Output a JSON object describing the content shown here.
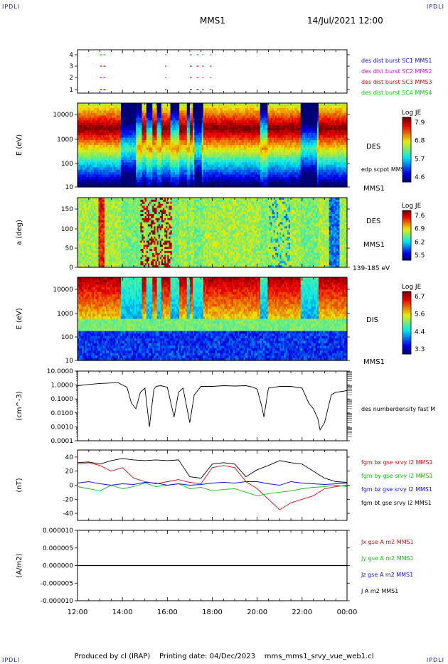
{
  "header": {
    "corner_labels": [
      "IPDLI",
      "IPDLI",
      "IPDLI",
      "IPDLI"
    ],
    "spacecraft": "MMS1",
    "datetime": "14/Jul/2021 12:00"
  },
  "footer": {
    "produced_by": "Produced by cl (IRAP)",
    "printing_date": "Printing date: 04/Dec/2023",
    "file_name": "mms_mms1_srvy_vue_web1.cl"
  },
  "colors": {
    "blue": "#1010d0",
    "magenta": "#d010d0",
    "red": "#d01010",
    "green": "#10c010",
    "black": "#000000"
  },
  "chart_data": [
    {
      "type": "line",
      "panel": "burst-availability",
      "yticks": [
        "4",
        "3",
        "2",
        "1"
      ],
      "legend": [
        "des dist burst SC1 MMS1",
        "des dist burst SC2 MMS2",
        "des dist burst SC3 MMS3",
        "des dist burst SC4 MMS4"
      ],
      "series": [
        {
          "name": "des dist burst SC1 MMS1",
          "level": 1,
          "intervals": [
            [
              13.0,
              13.3
            ],
            [
              15.9,
              15.95
            ],
            [
              17.0,
              17.15
            ],
            [
              17.3,
              17.4
            ],
            [
              17.55,
              17.6
            ],
            [
              17.9,
              17.95
            ]
          ]
        },
        {
          "name": "des dist burst SC2 MMS2",
          "level": 2,
          "intervals": [
            [
              13.0,
              13.3
            ],
            [
              15.9,
              15.95
            ],
            [
              17.0,
              17.15
            ],
            [
              17.3,
              17.4
            ],
            [
              17.55,
              17.6
            ],
            [
              17.9,
              17.95
            ]
          ]
        },
        {
          "name": "des dist burst SC3 MMS3",
          "level": 3,
          "intervals": [
            [
              13.0,
              13.3
            ],
            [
              15.9,
              15.95
            ],
            [
              17.0,
              17.15
            ],
            [
              17.3,
              17.4
            ],
            [
              17.55,
              17.6
            ],
            [
              17.9,
              17.95
            ]
          ]
        },
        {
          "name": "des dist burst SC4 MMS4",
          "level": 4,
          "intervals": [
            [
              13.0,
              13.3
            ],
            [
              15.9,
              15.95
            ],
            [
              17.0,
              17.15
            ],
            [
              17.3,
              17.4
            ],
            [
              17.55,
              17.6
            ],
            [
              17.9,
              17.95
            ]
          ]
        }
      ]
    },
    {
      "type": "heatmap",
      "panel": "des-energy",
      "ylabel": "E (eV)",
      "yticks": [
        "10000",
        "1000",
        "100",
        "10"
      ],
      "ylim": [
        10,
        30000
      ],
      "label": "DES",
      "side_labels": [
        "edp scpot MMS1",
        "MMS1"
      ],
      "colorbar": {
        "title": "Log JE",
        "ticks": [
          "7.9",
          "6.8",
          "5.7",
          "4.6"
        ]
      }
    },
    {
      "type": "heatmap",
      "panel": "des-pitch",
      "ylabel": "a (deg)",
      "yticks": [
        "150",
        "100",
        "50",
        "0"
      ],
      "ylim": [
        0,
        180
      ],
      "label": "DES",
      "side_labels": [
        "MMS1",
        "139-185 eV"
      ],
      "colorbar": {
        "title": "Log JE",
        "ticks": [
          "7.6",
          "6.9",
          "6.2",
          "5.5"
        ]
      }
    },
    {
      "type": "heatmap",
      "panel": "dis-energy",
      "ylabel": "E (eV)",
      "yticks": [
        "10000",
        "1000",
        "100",
        "10"
      ],
      "ylim": [
        10,
        30000
      ],
      "label": "DIS",
      "side_labels": [
        "MMS1"
      ],
      "colorbar": {
        "title": "Log JE",
        "ticks": [
          "6.7",
          "5.6",
          "4.4",
          "3.3"
        ]
      }
    },
    {
      "type": "line",
      "panel": "density",
      "ylabel": "(cm^-3)",
      "yscale": "log",
      "yticks": [
        "10.0000",
        "1.0000",
        "0.1000",
        "0.0100",
        "0.0010",
        "0.0001"
      ],
      "ylim": [
        0.0001,
        10
      ],
      "legend": [
        "des numberdensity fast M"
      ],
      "series": [
        {
          "name": "des numberdensity fast M",
          "x": [
            12.0,
            12.5,
            13.0,
            13.5,
            13.8,
            14.0,
            14.2,
            14.4,
            14.6,
            14.8,
            15.0,
            15.2,
            15.4,
            15.5,
            15.7,
            16.0,
            16.3,
            16.5,
            16.7,
            17.0,
            17.2,
            17.5,
            18.0,
            18.5,
            19.0,
            19.5,
            19.8,
            20.0,
            20.2,
            20.3,
            20.5,
            20.8,
            21.0,
            21.5,
            22.0,
            22.3,
            22.5,
            22.7,
            22.8,
            23.0,
            23.3,
            23.5,
            23.8,
            24.0
          ],
          "y": [
            0.9,
            1.1,
            1.3,
            1.4,
            1.5,
            1.0,
            0.7,
            0.05,
            0.02,
            0.3,
            0.6,
            0.001,
            0.5,
            0.8,
            0.9,
            0.7,
            0.005,
            0.3,
            0.6,
            0.002,
            0.2,
            0.8,
            0.8,
            0.9,
            0.85,
            0.9,
            0.7,
            0.5,
            0.03,
            0.005,
            0.6,
            0.7,
            0.8,
            0.8,
            0.6,
            0.05,
            0.02,
            0.004,
            0.0006,
            0.002,
            0.2,
            0.3,
            0.35,
            0.4
          ]
        }
      ]
    },
    {
      "type": "line",
      "panel": "magnetic-field",
      "ylabel": "(nT)",
      "yticks": [
        "40",
        "20",
        "0",
        "-20",
        "-40"
      ],
      "ylim": [
        -50,
        50
      ],
      "legend": [
        "fgm bx gse srvy l2 MMS1",
        "fgm by gse srvy l2 MMS1",
        "fgm bz gse srvy l2 MMS1",
        "fgm bt gse srvy l2 MMS1"
      ],
      "series": [
        {
          "name": "fgm bx gse srvy l2 MMS1",
          "x": [
            12.0,
            12.5,
            13.0,
            13.5,
            14.0,
            14.5,
            15.0,
            15.5,
            16.0,
            16.5,
            17.0,
            17.5,
            18.0,
            18.5,
            19.0,
            19.5,
            20.0,
            20.5,
            21.0,
            21.5,
            22.0,
            22.5,
            23.0,
            23.5,
            24.0
          ],
          "y": [
            30,
            32,
            28,
            20,
            25,
            10,
            5,
            2,
            5,
            8,
            4,
            2,
            25,
            28,
            25,
            5,
            -5,
            -20,
            -35,
            -25,
            -20,
            -15,
            -5,
            -2,
            0
          ]
        },
        {
          "name": "fgm by gse srvy l2 MMS1",
          "x": [
            12.0,
            12.5,
            13.0,
            13.5,
            14.0,
            14.5,
            15.0,
            15.5,
            16.0,
            16.5,
            17.0,
            17.5,
            18.0,
            18.5,
            19.0,
            19.5,
            20.0,
            20.5,
            21.0,
            21.5,
            22.0,
            22.5,
            23.0,
            23.5,
            24.0
          ],
          "y": [
            -2,
            -5,
            -8,
            0,
            -5,
            -2,
            3,
            -2,
            0,
            2,
            -5,
            -3,
            -8,
            -6,
            -5,
            -10,
            -15,
            -12,
            -10,
            -8,
            -5,
            -3,
            -2,
            0,
            -2
          ]
        },
        {
          "name": "fgm bz gse srvy l2 MMS1",
          "x": [
            12.0,
            12.5,
            13.0,
            13.5,
            14.0,
            14.5,
            15.0,
            15.5,
            16.0,
            16.5,
            17.0,
            17.5,
            18.0,
            18.5,
            19.0,
            19.5,
            20.0,
            20.5,
            21.0,
            21.5,
            22.0,
            22.5,
            23.0,
            23.5,
            24.0
          ],
          "y": [
            3,
            5,
            2,
            0,
            2,
            1,
            4,
            3,
            0,
            2,
            0,
            1,
            3,
            4,
            3,
            5,
            5,
            2,
            0,
            5,
            3,
            2,
            1,
            2,
            3
          ]
        },
        {
          "name": "fgm bt gse srvy l2 MMS1",
          "x": [
            12.0,
            12.5,
            13.0,
            13.5,
            14.0,
            14.5,
            15.0,
            15.5,
            16.0,
            16.5,
            17.0,
            17.5,
            18.0,
            18.5,
            19.0,
            19.5,
            20.0,
            20.5,
            21.0,
            21.5,
            22.0,
            22.5,
            23.0,
            23.5,
            24.0
          ],
          "y": [
            32,
            33,
            30,
            35,
            38,
            36,
            35,
            36,
            35,
            36,
            12,
            10,
            30,
            32,
            30,
            12,
            22,
            28,
            35,
            32,
            30,
            20,
            10,
            5,
            4
          ]
        }
      ]
    },
    {
      "type": "line",
      "panel": "current-density",
      "ylabel": "(A/m2)",
      "yticks": [
        "0.000010",
        "0.000005",
        "0.000000",
        "-0.000005",
        "-0.000010"
      ],
      "ylim": [
        -1e-05,
        1e-05
      ],
      "legend": [
        "Jx gse A m2 MMS1",
        "Jy gse A m2 MMS1",
        "Jz gse A m2 MMS1",
        "J A m2 MMS1"
      ],
      "series": [
        {
          "name": "J A m2 MMS1",
          "x": [
            12.0,
            24.0
          ],
          "y": [
            0.0,
            0.0
          ]
        }
      ]
    }
  ],
  "time_axis": {
    "ticks": [
      "12:00",
      "14:00",
      "16:00",
      "18:00",
      "20:00",
      "22:00",
      "00:00"
    ],
    "range": [
      12,
      24
    ]
  }
}
